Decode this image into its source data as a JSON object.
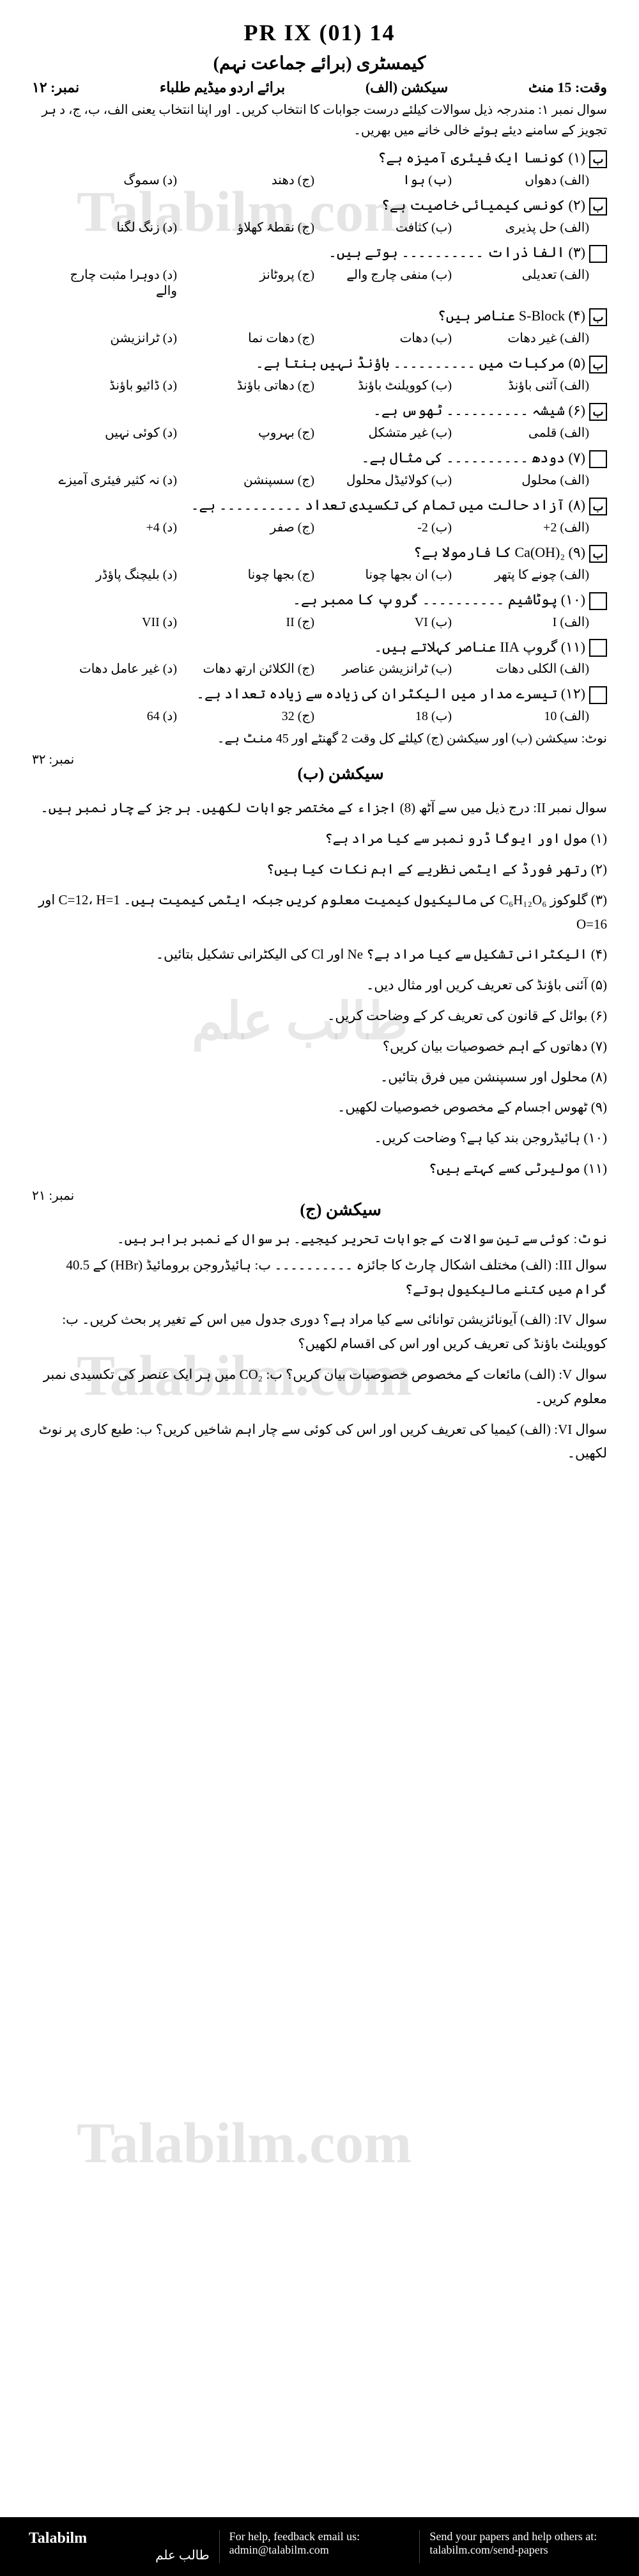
{
  "header": {
    "code": "PR IX (01) 14",
    "subject": "کیمسٹری (برائے جماعت نہم)",
    "time_section": "وقت: 15 منٹ",
    "section_a": "سیکشن (الف)",
    "medium": "برائے اردو میڈیم طلباء",
    "marks_a": "نمبر: ۱۲",
    "instruction": "سوال نمبر ۱: مندرجہ ذیل سوالات کیلئے درست جوابات کا انتخاب کریں۔ اور اپنا انتخاب یعنی الف، ب، ج، د ہر تجویز کے سامنے دیئے ہوئے خالی خانے میں بھریں۔"
  },
  "mcqs": [
    {
      "num": "(۱)",
      "q": "کونسا ایک فیئری آمیزہ ہے؟",
      "opts": [
        "(الف) دھواں",
        "(ب) ہوا",
        "(ج) دھند",
        "(د) سموگ"
      ],
      "box": "ب"
    },
    {
      "num": "(۲)",
      "q": "کونسی کیمیائی خاصیت ہے؟",
      "opts": [
        "(الف) حل پذیری",
        "(ب) کثافت",
        "(ج) نقطۂ کھلاؤ",
        "(د) زنگ لگنا"
      ],
      "box": "ب"
    },
    {
      "num": "(۳)",
      "q": "الفا ذرات ۔۔۔۔۔۔۔۔۔۔ ہوتے ہیں۔",
      "opts": [
        "(الف) تعدیلی",
        "(ب) منفی چارج والے",
        "(ج) پروٹانز",
        "(د) دوہرا مثبت چارج والے"
      ],
      "box": ""
    },
    {
      "num": "(۴)",
      "q": "S-Block عناصر ہیں؟",
      "opts": [
        "(الف) غیر دھات",
        "(ب) دھات",
        "(ج) دھات نما",
        "(د) ٹرانزیشن"
      ],
      "box": "ب"
    },
    {
      "num": "(۵)",
      "q": "مرکبات میں ۔۔۔۔۔۔۔۔۔۔ باؤنڈ نہیں بنتا ہے۔",
      "opts": [
        "(الف) آئنی باؤنڈ",
        "(ب) کوویلنٹ باؤنڈ",
        "(ج) دھاتی باؤنڈ",
        "(د) ڈائیو باؤنڈ"
      ],
      "box": "ب"
    },
    {
      "num": "(۶)",
      "q": "شیشہ ۔۔۔۔۔۔۔۔۔۔ ٹھوس ہے۔",
      "opts": [
        "(الف) قلمی",
        "(ب) غیر متشکل",
        "(ج) بہروپ",
        "(د) کوئی نہیں"
      ],
      "box": "ب"
    },
    {
      "num": "(۷)",
      "q": "دودھ ۔۔۔۔۔۔۔۔۔۔ کی مثال ہے۔",
      "opts": [
        "(الف) محلول",
        "(ب) کولائیڈل محلول",
        "(ج) سسپنشن",
        "(د) نہ کثیر فیئری آمیزے"
      ],
      "box": ""
    },
    {
      "num": "(۸)",
      "q": "آزاد حالت میں تمام کی تکسیدی تعداد ۔۔۔۔۔۔۔۔۔۔ ہے۔",
      "opts": [
        "(الف) 2+",
        "(ب) 2-",
        "(ج) صفر",
        "(د) 4+"
      ],
      "box": "ب"
    },
    {
      "num": "(۹)",
      "q": "Ca(OH)₂ کا فارمولا ہے؟",
      "opts": [
        "(الف) چونے کا پتھر",
        "(ب) ان بجھا چونا",
        "(ج) بجھا چونا",
        "(د) بلیچنگ پاؤڈر"
      ],
      "box": "ب"
    },
    {
      "num": "(۱۰)",
      "q": "پوٹاشیم ۔۔۔۔۔۔۔۔۔۔ گروپ کا ممبر ہے۔",
      "opts": [
        "(الف) I",
        "(ب) VI",
        "(ج) II",
        "(د) VII"
      ],
      "box": ""
    },
    {
      "num": "(۱۱)",
      "q": "گروپ IIA عناصر کہلاتے ہیں۔",
      "opts": [
        "(الف) الکلی دھات",
        "(ب) ٹرانزیشن عناصر",
        "(ج) الکلائن ارتھ دھات",
        "(د) غیر عامل دھات"
      ],
      "box": ""
    },
    {
      "num": "(۱۲)",
      "q": "تیسرے مدار میں الیکٹران کی زیادہ سے زیادہ تعداد ہے۔",
      "opts": [
        "(الف) 10",
        "(ب) 18",
        "(ج) 32",
        "(د) 64"
      ],
      "box": ""
    }
  ],
  "section_b": {
    "note_time": "نوٹ: سیکشن (ب) اور سیکشن (ج) کیلئے کل وقت 2 گھنٹے اور 45 منٹ ہے۔",
    "title": "سیکشن (ب)",
    "marks": "نمبر: ۳۲",
    "q2_head": "سوال نمبر II: درج ذیل میں سے آٹھ (8) اجزاء کے مختصر جوابات لکھیں۔ ہر جز کے چار نمبر ہیں۔",
    "parts": [
      "(۱) مول اور ایوگا ڈرو نمبر سے کیا مراد ہے؟",
      "(۲) رتھر فورڈ کے ایٹمی نظریے کے اہم نکات کیا ہیں؟",
      "(۳) گلوکوز C₆H₁₂O₆ کی مالیکیول کیمیت معلوم کریں جبکہ ایٹمی کیمیت ہیں۔ C=12، H=1 اور O=16",
      "(۴) الیکٹرانی تشکیل سے کیا مراد ہے؟ Ne اور Cl کی الیکٹرانی تشکیل بتائیں۔",
      "(۵) آئنی باؤنڈ کی تعریف کریں اور مثال دیں۔",
      "(۶) بوائل کے قانون کی تعریف کر کے وضاحت کریں۔",
      "(۷) دھاتوں کے اہم خصوصیات بیان کریں؟",
      "(۸) محلول اور سسپنشن میں فرق بتائیں۔",
      "(۹) ٹھوس اجسام کے مخصوص خصوصیات لکھیں۔",
      "(۱۰) ہائیڈروجن بند کیا ہے؟ وضاحت کریں۔",
      "(۱۱) مولیرٹی کسے کہتے ہیں؟"
    ]
  },
  "section_c": {
    "title": "سیکشن (ج)",
    "marks": "نمبر: ۲۱",
    "note": "نوٹ: کوئی سے تین سوالات کے جوابات تحریر کیجیے۔ ہر سوال کے نمبر برابر ہیں۔",
    "questions": [
      "سوال III: (الف) مختلف اشکال چارٹ کا جائزہ ۔۔۔۔۔۔۔۔۔۔ ب: ہائیڈروجن برومائیڈ (HBr) کے 40.5 گرام میں کتنے مالیکیول ہوتے؟",
      "سوال IV: (الف) آیونائزیشن توانائی سے کیا مراد ہے؟ دوری جدول میں اس کے تغیر پر بحث کریں۔ ب: کوویلنٹ باؤنڈ کی تعریف کریں اور اس کی اقسام لکھیں؟",
      "سوال V: (الف) مائعات کے مخصوص خصوصیات بیان کریں؟ ب: CO₂ میں ہر ایک عنصر کی تکسیدی نمبر معلوم کریں۔",
      "سوال VI: (الف) کیمیا کی تعریف کریں اور اس کی کوئی سے چار اہم شاخیں کریں؟ ب: طبع کاری پر نوٹ لکھیں۔"
    ]
  },
  "watermarks": {
    "en": "Talabilm.com",
    "ur": "طالب علم"
  },
  "footer": {
    "logo_en": "Talabilm",
    "logo_ur": "طالب علم",
    "help_text": "For help, feedback email us:",
    "help_email": "admin@talabilm.com",
    "send_text": "Send your papers and help others at:",
    "send_url": "talabilm.com/send-papers"
  },
  "colors": {
    "page_bg": "#ffffff",
    "text": "#000000",
    "watermark": "rgba(180,180,180,0.35)",
    "footer_bg": "#000000",
    "footer_text": "#ffffff"
  }
}
